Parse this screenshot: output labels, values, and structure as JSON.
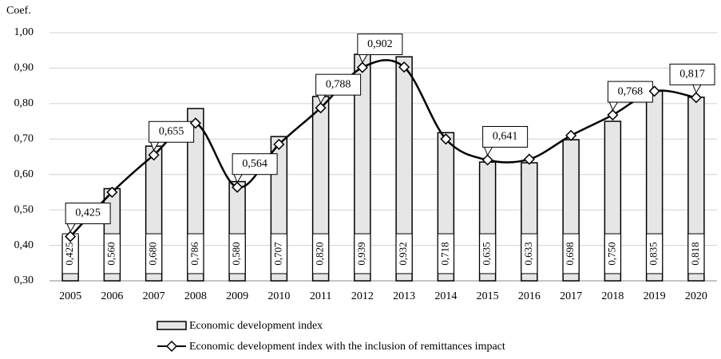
{
  "chart_data": {
    "type": "bar-line",
    "y_axis_label": "Coef.",
    "categories": [
      "2005",
      "2006",
      "2007",
      "2008",
      "2009",
      "2010",
      "2011",
      "2012",
      "2013",
      "2014",
      "2015",
      "2016",
      "2017",
      "2018",
      "2019",
      "2020"
    ],
    "series": [
      {
        "name": "Economic development index",
        "type": "bar",
        "color": "#e6e6e6",
        "values": [
          0.425,
          0.56,
          0.68,
          0.786,
          0.58,
          0.707,
          0.82,
          0.939,
          0.932,
          0.718,
          0.635,
          0.633,
          0.698,
          0.75,
          0.835,
          0.818
        ],
        "value_labels": [
          "0,425",
          "0,560",
          "0,680",
          "0,786",
          "0,580",
          "0,707",
          "0,820",
          "0,939",
          "0,932",
          "0,718",
          "0,635",
          "0,633",
          "0,698",
          "0,750",
          "0,835",
          "0,818"
        ]
      },
      {
        "name": "Economic development index with the inclusion of remittances impact",
        "type": "line",
        "color": "#000000",
        "values": [
          0.425,
          0.55,
          0.655,
          0.745,
          0.564,
          0.685,
          0.788,
          0.902,
          0.903,
          0.7,
          0.641,
          0.643,
          0.71,
          0.768,
          0.835,
          0.817
        ],
        "value_labels": [
          "0,425",
          null,
          "0,655",
          null,
          "0,564",
          null,
          "0,788",
          "0,902",
          null,
          null,
          "0,641",
          null,
          null,
          "0,768",
          null,
          "0,817"
        ]
      }
    ],
    "ylim": [
      0.3,
      1.0
    ],
    "yticks": [
      {
        "value": 0.3,
        "label": "0,30"
      },
      {
        "value": 0.4,
        "label": "0,40"
      },
      {
        "value": 0.5,
        "label": "0,50"
      },
      {
        "value": 0.6,
        "label": "0,60"
      },
      {
        "value": 0.7,
        "label": "0,70"
      },
      {
        "value": 0.8,
        "label": "0,80"
      },
      {
        "value": 0.9,
        "label": "0,90"
      },
      {
        "value": 1.0,
        "label": "1,00"
      }
    ],
    "grid": true
  }
}
